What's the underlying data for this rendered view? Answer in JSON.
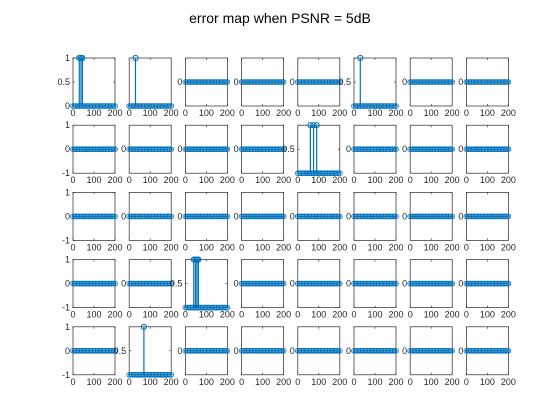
{
  "title": "error map when PSNR = 5dB",
  "colors": {
    "stem": "#0072BD",
    "axes": "#262626",
    "background": "#ffffff"
  },
  "chart_data": {
    "type": "stem",
    "layout": {
      "rows": 5,
      "cols": 8
    },
    "x_domain": [
      0,
      200
    ],
    "x_ticks": [
      "0",
      "100",
      "200"
    ],
    "baseline_sample_count": 30,
    "grid": false,
    "subplots": [
      {
        "row": 1,
        "col": 1,
        "ylim": [
          0,
          1
        ],
        "yticks": [
          "0",
          "0.5",
          "1"
        ],
        "stems": [
          {
            "x": 30,
            "y": 1
          },
          {
            "x": 38,
            "y": 1
          },
          {
            "x": 45,
            "y": 1
          }
        ]
      },
      {
        "row": 1,
        "col": 2,
        "ylim": [
          0,
          1
        ],
        "yticks": [],
        "stems": [
          {
            "x": 30,
            "y": 1
          }
        ]
      },
      {
        "row": 1,
        "col": 3,
        "ylim": [
          -1,
          1
        ],
        "yticks": [
          "0"
        ],
        "stems": []
      },
      {
        "row": 1,
        "col": 4,
        "ylim": [
          -1,
          1
        ],
        "yticks": [
          "0"
        ],
        "stems": []
      },
      {
        "row": 1,
        "col": 5,
        "ylim": [
          -1,
          1
        ],
        "yticks": [
          "0"
        ],
        "stems": []
      },
      {
        "row": 1,
        "col": 6,
        "ylim": [
          0,
          1
        ],
        "yticks": [
          "0.5"
        ],
        "stems": [
          {
            "x": 30,
            "y": 1
          }
        ]
      },
      {
        "row": 1,
        "col": 7,
        "ylim": [
          -1,
          1
        ],
        "yticks": [
          "0"
        ],
        "stems": []
      },
      {
        "row": 1,
        "col": 8,
        "ylim": [
          -1,
          1
        ],
        "yticks": [
          "0"
        ],
        "stems": []
      },
      {
        "row": 2,
        "col": 1,
        "ylim": [
          -1,
          1
        ],
        "yticks": [
          "-1",
          "0",
          "1"
        ],
        "stems": []
      },
      {
        "row": 2,
        "col": 2,
        "ylim": [
          -1,
          1
        ],
        "yticks": [
          "0"
        ],
        "stems": []
      },
      {
        "row": 2,
        "col": 3,
        "ylim": [
          -1,
          1
        ],
        "yticks": [
          "0"
        ],
        "stems": []
      },
      {
        "row": 2,
        "col": 4,
        "ylim": [
          -1,
          1
        ],
        "yticks": [
          "0"
        ],
        "stems": []
      },
      {
        "row": 2,
        "col": 5,
        "ylim": [
          0,
          1
        ],
        "yticks": [
          "0.5"
        ],
        "stems": [
          {
            "x": 60,
            "y": 1
          },
          {
            "x": 75,
            "y": 1
          },
          {
            "x": 90,
            "y": 1
          }
        ]
      },
      {
        "row": 2,
        "col": 6,
        "ylim": [
          -1,
          1
        ],
        "yticks": [
          "0"
        ],
        "stems": []
      },
      {
        "row": 2,
        "col": 7,
        "ylim": [
          -1,
          1
        ],
        "yticks": [
          "0"
        ],
        "stems": []
      },
      {
        "row": 2,
        "col": 8,
        "ylim": [
          -1,
          1
        ],
        "yticks": [
          "0"
        ],
        "stems": []
      },
      {
        "row": 3,
        "col": 1,
        "ylim": [
          -1,
          1
        ],
        "yticks": [
          "-1",
          "0",
          "1"
        ],
        "stems": []
      },
      {
        "row": 3,
        "col": 2,
        "ylim": [
          -1,
          1
        ],
        "yticks": [
          "0"
        ],
        "stems": []
      },
      {
        "row": 3,
        "col": 3,
        "ylim": [
          -1,
          1
        ],
        "yticks": [
          "0"
        ],
        "stems": []
      },
      {
        "row": 3,
        "col": 4,
        "ylim": [
          -1,
          1
        ],
        "yticks": [
          "0"
        ],
        "stems": []
      },
      {
        "row": 3,
        "col": 5,
        "ylim": [
          -1,
          1
        ],
        "yticks": [
          "0"
        ],
        "stems": []
      },
      {
        "row": 3,
        "col": 6,
        "ylim": [
          -1,
          1
        ],
        "yticks": [
          "0"
        ],
        "stems": []
      },
      {
        "row": 3,
        "col": 7,
        "ylim": [
          -1,
          1
        ],
        "yticks": [
          "0"
        ],
        "stems": []
      },
      {
        "row": 3,
        "col": 8,
        "ylim": [
          -1,
          1
        ],
        "yticks": [
          "0"
        ],
        "stems": []
      },
      {
        "row": 4,
        "col": 1,
        "ylim": [
          -1,
          1
        ],
        "yticks": [
          "-1",
          "0",
          "1"
        ],
        "stems": []
      },
      {
        "row": 4,
        "col": 2,
        "ylim": [
          -1,
          1
        ],
        "yticks": [
          "0"
        ],
        "stems": []
      },
      {
        "row": 4,
        "col": 3,
        "ylim": [
          0,
          1
        ],
        "yticks": [
          "0.5"
        ],
        "stems": [
          {
            "x": 40,
            "y": 1
          },
          {
            "x": 48,
            "y": 1
          },
          {
            "x": 55,
            "y": 1
          },
          {
            "x": 62,
            "y": 1
          }
        ]
      },
      {
        "row": 4,
        "col": 4,
        "ylim": [
          -1,
          1
        ],
        "yticks": [
          "0"
        ],
        "stems": []
      },
      {
        "row": 4,
        "col": 5,
        "ylim": [
          -1,
          1
        ],
        "yticks": [
          "0"
        ],
        "stems": []
      },
      {
        "row": 4,
        "col": 6,
        "ylim": [
          -1,
          1
        ],
        "yticks": [
          "0"
        ],
        "stems": []
      },
      {
        "row": 4,
        "col": 7,
        "ylim": [
          -1,
          1
        ],
        "yticks": [
          "0"
        ],
        "stems": []
      },
      {
        "row": 4,
        "col": 8,
        "ylim": [
          -1,
          1
        ],
        "yticks": [
          "0"
        ],
        "stems": []
      },
      {
        "row": 5,
        "col": 1,
        "ylim": [
          -1,
          1
        ],
        "yticks": [
          "-1",
          "0",
          "1"
        ],
        "stems": []
      },
      {
        "row": 5,
        "col": 2,
        "ylim": [
          0,
          1
        ],
        "yticks": [
          "0.5"
        ],
        "stems": [
          {
            "x": 70,
            "y": 1
          }
        ]
      },
      {
        "row": 5,
        "col": 3,
        "ylim": [
          -1,
          1
        ],
        "yticks": [
          "0"
        ],
        "stems": []
      },
      {
        "row": 5,
        "col": 4,
        "ylim": [
          -1,
          1
        ],
        "yticks": [
          "0"
        ],
        "stems": []
      },
      {
        "row": 5,
        "col": 5,
        "ylim": [
          -1,
          1
        ],
        "yticks": [
          "0"
        ],
        "stems": []
      },
      {
        "row": 5,
        "col": 6,
        "ylim": [
          -1,
          1
        ],
        "yticks": [
          "0"
        ],
        "stems": []
      },
      {
        "row": 5,
        "col": 7,
        "ylim": [
          -1,
          1
        ],
        "yticks": [
          "0"
        ],
        "stems": []
      },
      {
        "row": 5,
        "col": 8,
        "ylim": [
          -1,
          1
        ],
        "yticks": [
          "0"
        ],
        "stems": []
      }
    ]
  }
}
